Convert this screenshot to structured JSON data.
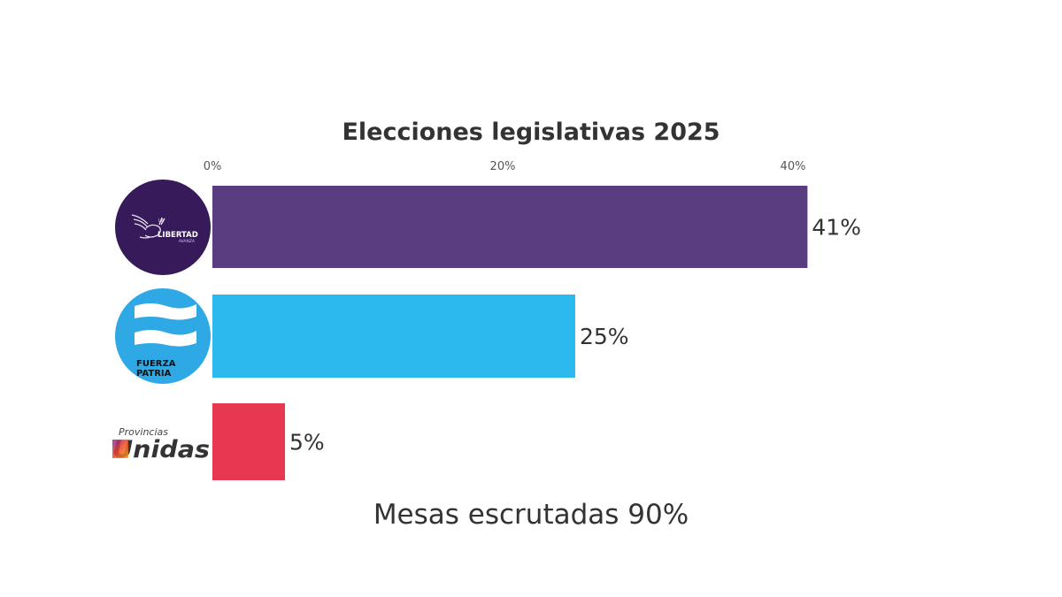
{
  "chart_data": {
    "type": "bar",
    "orientation": "horizontal",
    "title": "Elecciones legislativas 2025",
    "categories": [
      "La Libertad Avanza",
      "Fuerza Patria",
      "Provincias Unidas"
    ],
    "values": [
      41,
      25,
      5
    ],
    "value_labels": [
      "41%",
      "25%",
      "5%"
    ],
    "colors": [
      "#5a3c80",
      "#2bb9ee",
      "#e73852"
    ],
    "xlim": [
      0,
      41
    ],
    "x_ticks": [
      0,
      20,
      40
    ],
    "x_tick_labels": [
      "0%",
      "20%",
      "40%"
    ],
    "xlabel": "",
    "ylabel": "",
    "grid": false,
    "axis_position": "top",
    "footer": "Mesas escrutadas 90%"
  },
  "logos": [
    {
      "name": "la-libertad-avanza",
      "text_main": "LIBERTAD",
      "text_top": "LA",
      "text_sub": "AVANZA",
      "bg": "#361a59"
    },
    {
      "name": "fuerza-patria",
      "text_lines": [
        "FUERZA",
        "PATRIA"
      ],
      "bg": "#2ea9e6"
    },
    {
      "name": "provincias-unidas",
      "text_top": "Provincias",
      "text_main": "Unidas"
    }
  ]
}
